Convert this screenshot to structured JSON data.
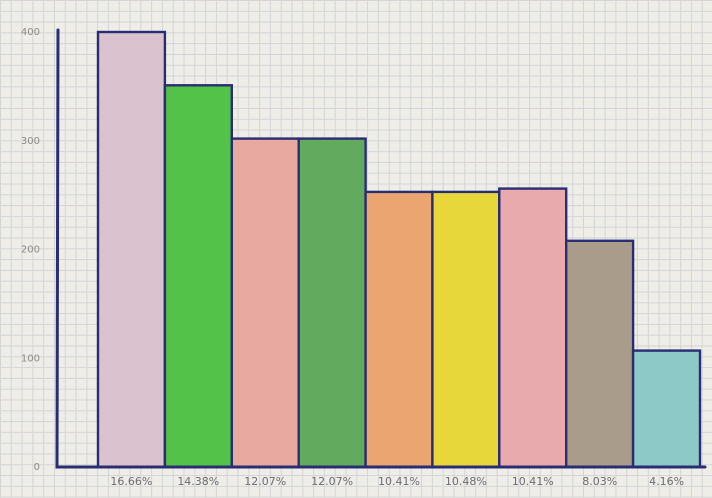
{
  "chart_data": {
    "type": "bar",
    "title": "",
    "xlabel": "",
    "ylabel": "",
    "ylim": [
      0,
      400
    ],
    "yticks": [
      "0",
      "100",
      "200",
      "300",
      "400"
    ],
    "categories": [
      "16.66%",
      "14.38%",
      "12.07%",
      "12.07%",
      "10.41%",
      "10.48%",
      "10.41%",
      "8.03%",
      "4.16%"
    ],
    "values": [
      400,
      351,
      302,
      302,
      253,
      253,
      256,
      208,
      107
    ],
    "colors": [
      "#dac3cf",
      "#52c248",
      "#e8aaa0",
      "#62ab5e",
      "#eba571",
      "#e7d73a",
      "#e9aaae",
      "#aa9c8b",
      "#8dcac7"
    ],
    "grid": true,
    "legend": "none"
  }
}
